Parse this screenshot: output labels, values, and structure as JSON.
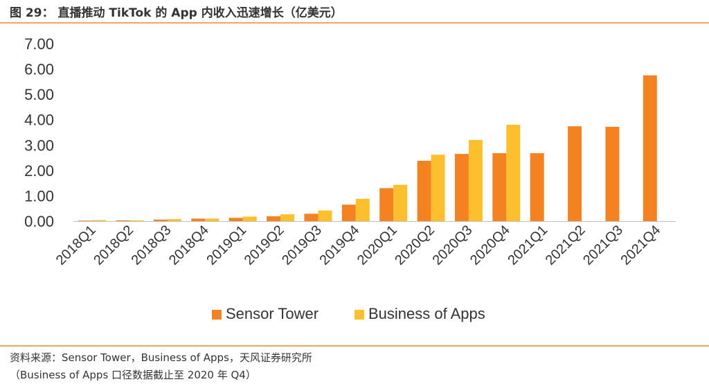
{
  "figure": {
    "title": "图 29： 直播推动 TikTok 的 App 内收入迅速增长（亿美元）",
    "source_line1": "资料来源：Sensor Tower，Business of Apps，天风证券研究所",
    "source_line2": "（Business of Apps 口径数据截止至 2020 年 Q4）"
  },
  "chart_data": {
    "type": "bar",
    "categories": [
      "2018Q1",
      "2018Q2",
      "2018Q3",
      "2018Q4",
      "2019Q1",
      "2019Q2",
      "2019Q3",
      "2019Q4",
      "2020Q1",
      "2020Q2",
      "2020Q3",
      "2020Q4",
      "2021Q1",
      "2021Q2",
      "2021Q3",
      "2021Q4"
    ],
    "series": [
      {
        "name": "Sensor Tower",
        "color": "#f58220",
        "values": [
          0.02,
          0.03,
          0.06,
          0.1,
          0.13,
          0.19,
          0.29,
          0.65,
          1.3,
          2.38,
          2.65,
          2.68,
          2.68,
          3.74,
          3.72,
          5.75
        ]
      },
      {
        "name": "Business of Apps",
        "color": "#fcbf2d",
        "values": [
          0.04,
          0.03,
          0.08,
          0.1,
          0.18,
          0.27,
          0.42,
          0.88,
          1.43,
          2.62,
          3.2,
          3.8,
          null,
          null,
          null,
          null
        ]
      }
    ],
    "yticks": [
      "0.00",
      "1.00",
      "2.00",
      "3.00",
      "4.00",
      "5.00",
      "6.00",
      "7.00"
    ],
    "ylim": [
      0,
      7
    ],
    "legend_position": "bottom",
    "grid": false
  }
}
